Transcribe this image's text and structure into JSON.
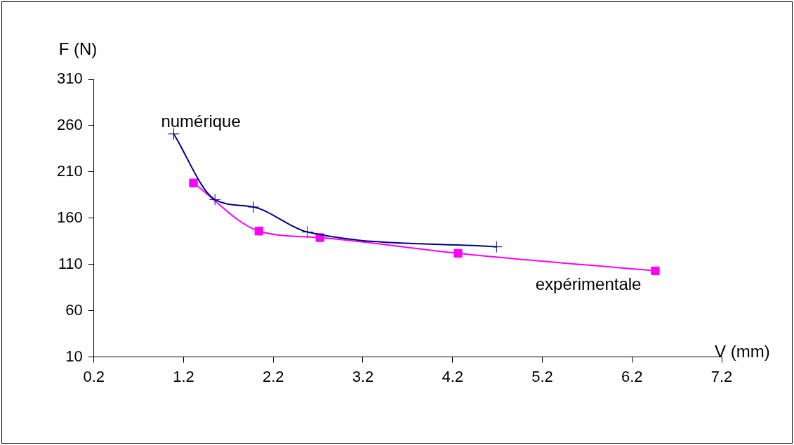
{
  "chart_data": {
    "type": "line",
    "xlabel": "V (mm)",
    "ylabel": "F (N)",
    "xlim": [
      0.2,
      7.2
    ],
    "xticks": [
      0.2,
      1.2,
      2.2,
      3.2,
      4.2,
      5.2,
      6.2,
      7.2
    ],
    "ylim": [
      10,
      310
    ],
    "yticks": [
      10,
      60,
      110,
      160,
      210,
      260,
      310
    ],
    "grid": false,
    "legend": false,
    "line_style": "solid",
    "series": [
      {
        "name": "numérique",
        "color": "#000080",
        "marker": "cross",
        "x": [
          1.09,
          1.55,
          1.98,
          2.58,
          4.69
        ],
        "values": [
          251,
          180,
          172,
          145,
          129
        ]
      },
      {
        "name": "expérimentale",
        "color": "#ff00ff",
        "marker": "square",
        "x": [
          1.31,
          2.04,
          2.72,
          4.26,
          6.46
        ],
        "values": [
          198,
          146,
          139,
          122,
          103
        ]
      }
    ]
  }
}
